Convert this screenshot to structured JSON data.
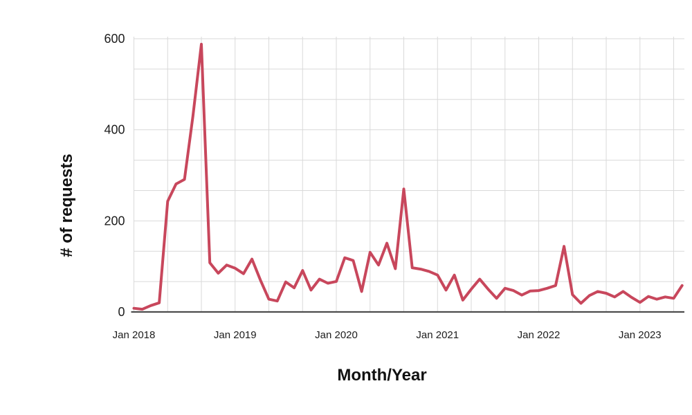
{
  "chart_data": {
    "type": "line",
    "title": "",
    "xlabel": "Month/Year",
    "ylabel": "# of requests",
    "x_tick_labels": [
      "Jan 2018",
      "Jan 2019",
      "Jan 2020",
      "Jan 2021",
      "Jan 2022",
      "Jan 2023"
    ],
    "y_ticks": [
      0,
      200,
      400,
      600
    ],
    "y_tick_labels": [
      "0",
      "200",
      "400",
      "600"
    ],
    "ylim": [
      0,
      617
    ],
    "x_range_months": [
      "2018-01",
      "2023-06"
    ],
    "grid": "on-light-gray-minor-thirds",
    "legend_position": "none",
    "line_color": "#c8475c",
    "grid_color": "#d9d9d9",
    "axis_line_color": "#4d4d4d",
    "months": [
      "Jan 2018",
      "Feb 2018",
      "Mar 2018",
      "Apr 2018",
      "May 2018",
      "Jun 2018",
      "Jul 2018",
      "Aug 2018",
      "Sep 2018",
      "Oct 2018",
      "Nov 2018",
      "Dec 2018",
      "Jan 2019",
      "Feb 2019",
      "Mar 2019",
      "Apr 2019",
      "May 2019",
      "Jun 2019",
      "Jul 2019",
      "Aug 2019",
      "Sep 2019",
      "Oct 2019",
      "Nov 2019",
      "Dec 2019",
      "Jan 2020",
      "Feb 2020",
      "Mar 2020",
      "Apr 2020",
      "May 2020",
      "Jun 2020",
      "Jul 2020",
      "Aug 2020",
      "Sep 2020",
      "Oct 2020",
      "Nov 2020",
      "Dec 2020",
      "Jan 2021",
      "Feb 2021",
      "Mar 2021",
      "Apr 2021",
      "May 2021",
      "Jun 2021",
      "Jul 2021",
      "Aug 2021",
      "Sep 2021",
      "Oct 2021",
      "Nov 2021",
      "Dec 2021",
      "Jan 2022",
      "Feb 2022",
      "Mar 2022",
      "Apr 2022",
      "May 2022",
      "Jun 2022",
      "Jul 2022",
      "Aug 2022",
      "Sep 2022",
      "Oct 2022",
      "Nov 2022",
      "Dec 2022",
      "Jan 2023",
      "Feb 2023",
      "Mar 2023",
      "Apr 2023",
      "May 2023",
      "Jun 2023"
    ],
    "values": [
      8,
      6,
      14,
      20,
      243,
      281,
      291,
      430,
      588,
      108,
      85,
      103,
      96,
      84,
      116,
      70,
      28,
      24,
      66,
      53,
      91,
      48,
      72,
      63,
      67,
      119,
      113,
      45,
      131,
      103,
      151,
      95,
      270,
      97,
      94,
      89,
      81,
      48,
      81,
      26,
      50,
      72,
      50,
      30,
      52,
      47,
      37,
      46,
      47,
      52,
      58,
      144,
      38,
      19,
      36,
      45,
      41,
      33,
      45,
      32,
      21,
      34,
      28,
      33,
      30,
      58
    ]
  }
}
